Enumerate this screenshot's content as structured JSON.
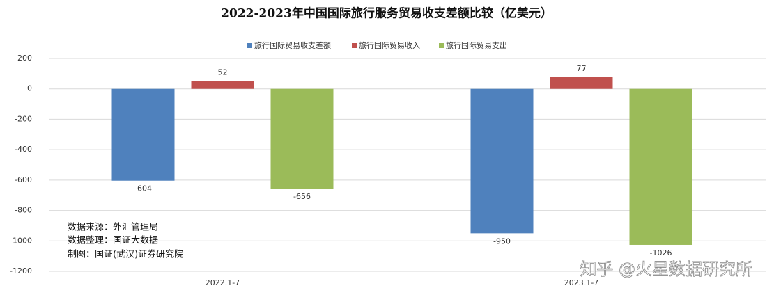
{
  "chart_data": {
    "type": "bar",
    "title": "2022-2023年中国国际旅行服务贸易收支差额比较（亿美元）",
    "categories": [
      "2022.1-7",
      "2023.1-7"
    ],
    "series": [
      {
        "name": "旅行国际贸易收支差额",
        "color": "#4f81bd",
        "values": [
          -604,
          -950
        ]
      },
      {
        "name": "旅行国际贸易收入",
        "color": "#c0504d",
        "values": [
          52,
          77
        ]
      },
      {
        "name": "旅行国际贸易支出",
        "color": "#9bbb59",
        "values": [
          -656,
          -1026
        ]
      }
    ],
    "ylim": [
      -1200,
      200
    ],
    "yticks": [
      -1200,
      -1000,
      -800,
      -600,
      -400,
      -200,
      0,
      200
    ],
    "grid": true,
    "legend": "top",
    "annotations": [
      "数据来源：外汇管理局",
      "数据整理：国证大数据",
      "制图：国证(武汉)证券研究院",
      "知乎 @火星数据研究所"
    ]
  }
}
